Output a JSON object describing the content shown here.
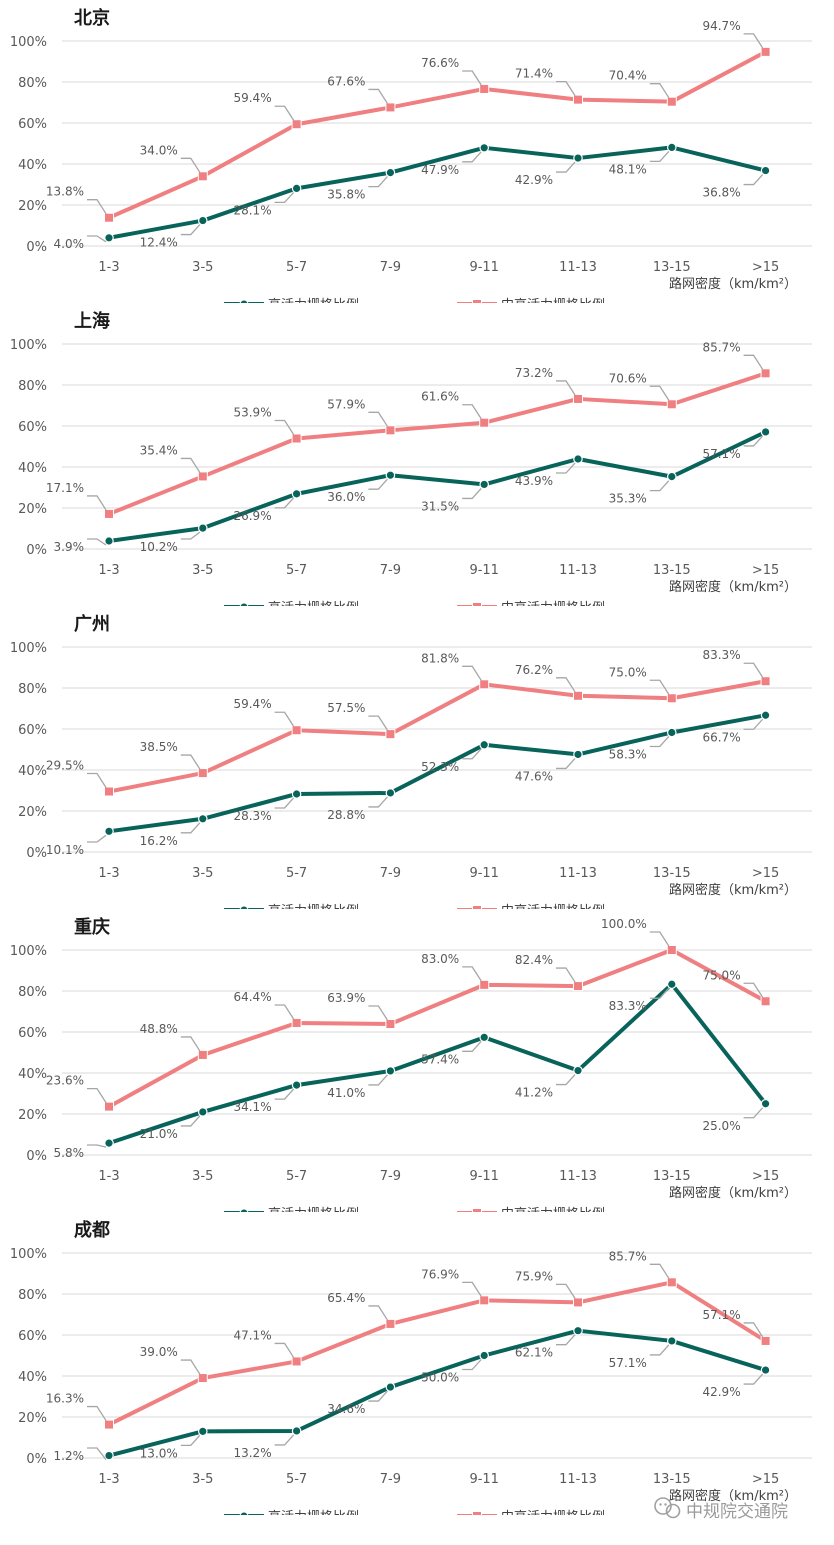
{
  "colors": {
    "high": "#08635a",
    "midhigh": "#ef7f80",
    "grid": "#d9d9d9"
  },
  "watermark": {
    "text": "中规院交通院",
    "icon": "wechat-icon"
  },
  "chart_data": [
    {
      "type": "line",
      "title": "北京",
      "categories": [
        "1-3",
        "3-5",
        "5-7",
        "7-9",
        "9-11",
        "11-13",
        "13-15",
        ">15"
      ],
      "y_ticks": [
        "0%",
        "20%",
        "40%",
        "60%",
        "80%",
        "100%"
      ],
      "ylim": [
        0,
        100
      ],
      "x_unit_label": "路网密度（km/km²）",
      "grid": true,
      "legend_position": "bottom",
      "series": [
        {
          "name": "高活力栅格比例",
          "values": [
            4.0,
            12.4,
            28.1,
            35.8,
            47.9,
            42.9,
            48.1,
            36.8
          ],
          "labels": [
            "4.0%",
            "12.4%",
            "28.1%",
            "35.8%",
            "47.9%",
            "42.9%",
            "48.1%",
            "36.8%"
          ]
        },
        {
          "name": "中高活力栅格比例",
          "values": [
            13.8,
            34.0,
            59.4,
            67.6,
            76.6,
            71.4,
            70.4,
            94.7
          ],
          "labels": [
            "13.8%",
            "34.0%",
            "59.4%",
            "67.6%",
            "76.6%",
            "71.4%",
            "70.4%",
            "94.7%"
          ]
        }
      ]
    },
    {
      "type": "line",
      "title": "上海",
      "categories": [
        "1-3",
        "3-5",
        "5-7",
        "7-9",
        "9-11",
        "11-13",
        "13-15",
        ">15"
      ],
      "y_ticks": [
        "0%",
        "20%",
        "40%",
        "60%",
        "80%",
        "100%"
      ],
      "ylim": [
        0,
        100
      ],
      "x_unit_label": "路网密度（km/km²）",
      "grid": true,
      "legend_position": "bottom",
      "series": [
        {
          "name": "高活力栅格比例",
          "values": [
            3.9,
            10.2,
            26.9,
            36.0,
            31.5,
            43.9,
            35.3,
            57.1
          ],
          "labels": [
            "3.9%",
            "10.2%",
            "26.9%",
            "36.0%",
            "31.5%",
            "43.9%",
            "35.3%",
            "57.1%"
          ]
        },
        {
          "name": "中高活力栅格比例",
          "values": [
            17.1,
            35.4,
            53.9,
            57.9,
            61.6,
            73.2,
            70.6,
            85.7
          ],
          "labels": [
            "17.1%",
            "35.4%",
            "53.9%",
            "57.9%",
            "61.6%",
            "73.2%",
            "70.6%",
            "85.7%"
          ]
        }
      ]
    },
    {
      "type": "line",
      "title": "广州",
      "categories": [
        "1-3",
        "3-5",
        "5-7",
        "7-9",
        "9-11",
        "11-13",
        "13-15",
        ">15"
      ],
      "y_ticks": [
        "0%",
        "20%",
        "40%",
        "60%",
        "80%",
        "100%"
      ],
      "ylim": [
        0,
        100
      ],
      "x_unit_label": "路网密度（km/km²）",
      "grid": true,
      "legend_position": "bottom",
      "series": [
        {
          "name": "高活力栅格比例",
          "values": [
            10.1,
            16.2,
            28.3,
            28.8,
            52.3,
            47.6,
            58.3,
            66.7
          ],
          "labels": [
            "10.1%",
            "16.2%",
            "28.3%",
            "28.8%",
            "52.3%",
            "47.6%",
            "58.3%",
            "66.7%"
          ]
        },
        {
          "name": "中高活力栅格比例",
          "values": [
            29.5,
            38.5,
            59.4,
            57.5,
            81.8,
            76.2,
            75.0,
            83.3
          ],
          "labels": [
            "29.5%",
            "38.5%",
            "59.4%",
            "57.5%",
            "81.8%",
            "76.2%",
            "75.0%",
            "83.3%"
          ]
        }
      ]
    },
    {
      "type": "line",
      "title": "重庆",
      "categories": [
        "1-3",
        "3-5",
        "5-7",
        "7-9",
        "9-11",
        "11-13",
        "13-15",
        ">15"
      ],
      "y_ticks": [
        "0%",
        "20%",
        "40%",
        "60%",
        "80%",
        "100%"
      ],
      "ylim": [
        0,
        100
      ],
      "x_unit_label": "路网密度（km/km²）",
      "grid": true,
      "legend_position": "bottom",
      "series": [
        {
          "name": "高活力栅格比例",
          "values": [
            5.8,
            21.0,
            34.1,
            41.0,
            57.4,
            41.2,
            83.3,
            25.0
          ],
          "labels": [
            "5.8%",
            "21.0%",
            "34.1%",
            "41.0%",
            "57.4%",
            "41.2%",
            "83.3%",
            "25.0%"
          ]
        },
        {
          "name": "中高活力栅格比例",
          "values": [
            23.6,
            48.8,
            64.4,
            63.9,
            83.0,
            82.4,
            100.0,
            75.0
          ],
          "labels": [
            "23.6%",
            "48.8%",
            "64.4%",
            "63.9%",
            "83.0%",
            "82.4%",
            "100.0%",
            "75.0%"
          ]
        }
      ]
    },
    {
      "type": "line",
      "title": "成都",
      "categories": [
        "1-3",
        "3-5",
        "5-7",
        "7-9",
        "9-11",
        "11-13",
        "13-15",
        ">15"
      ],
      "y_ticks": [
        "0%",
        "20%",
        "40%",
        "60%",
        "80%",
        "100%"
      ],
      "ylim": [
        0,
        100
      ],
      "x_unit_label": "路网密度（km/km²）",
      "grid": true,
      "legend_position": "bottom",
      "series": [
        {
          "name": "高活力栅格比例",
          "values": [
            1.2,
            13.0,
            13.2,
            34.6,
            50.0,
            62.1,
            57.1,
            42.9
          ],
          "labels": [
            "1.2%",
            "13.0%",
            "13.2%",
            "34.6%",
            "50.0%",
            "62.1%",
            "57.1%",
            "42.9%"
          ]
        },
        {
          "name": "中高活力栅格比例",
          "values": [
            16.3,
            39.0,
            47.1,
            65.4,
            76.9,
            75.9,
            85.7,
            57.1
          ],
          "labels": [
            "16.3%",
            "39.0%",
            "47.1%",
            "65.4%",
            "76.9%",
            "75.9%",
            "85.7%",
            "57.1%"
          ]
        }
      ]
    }
  ]
}
